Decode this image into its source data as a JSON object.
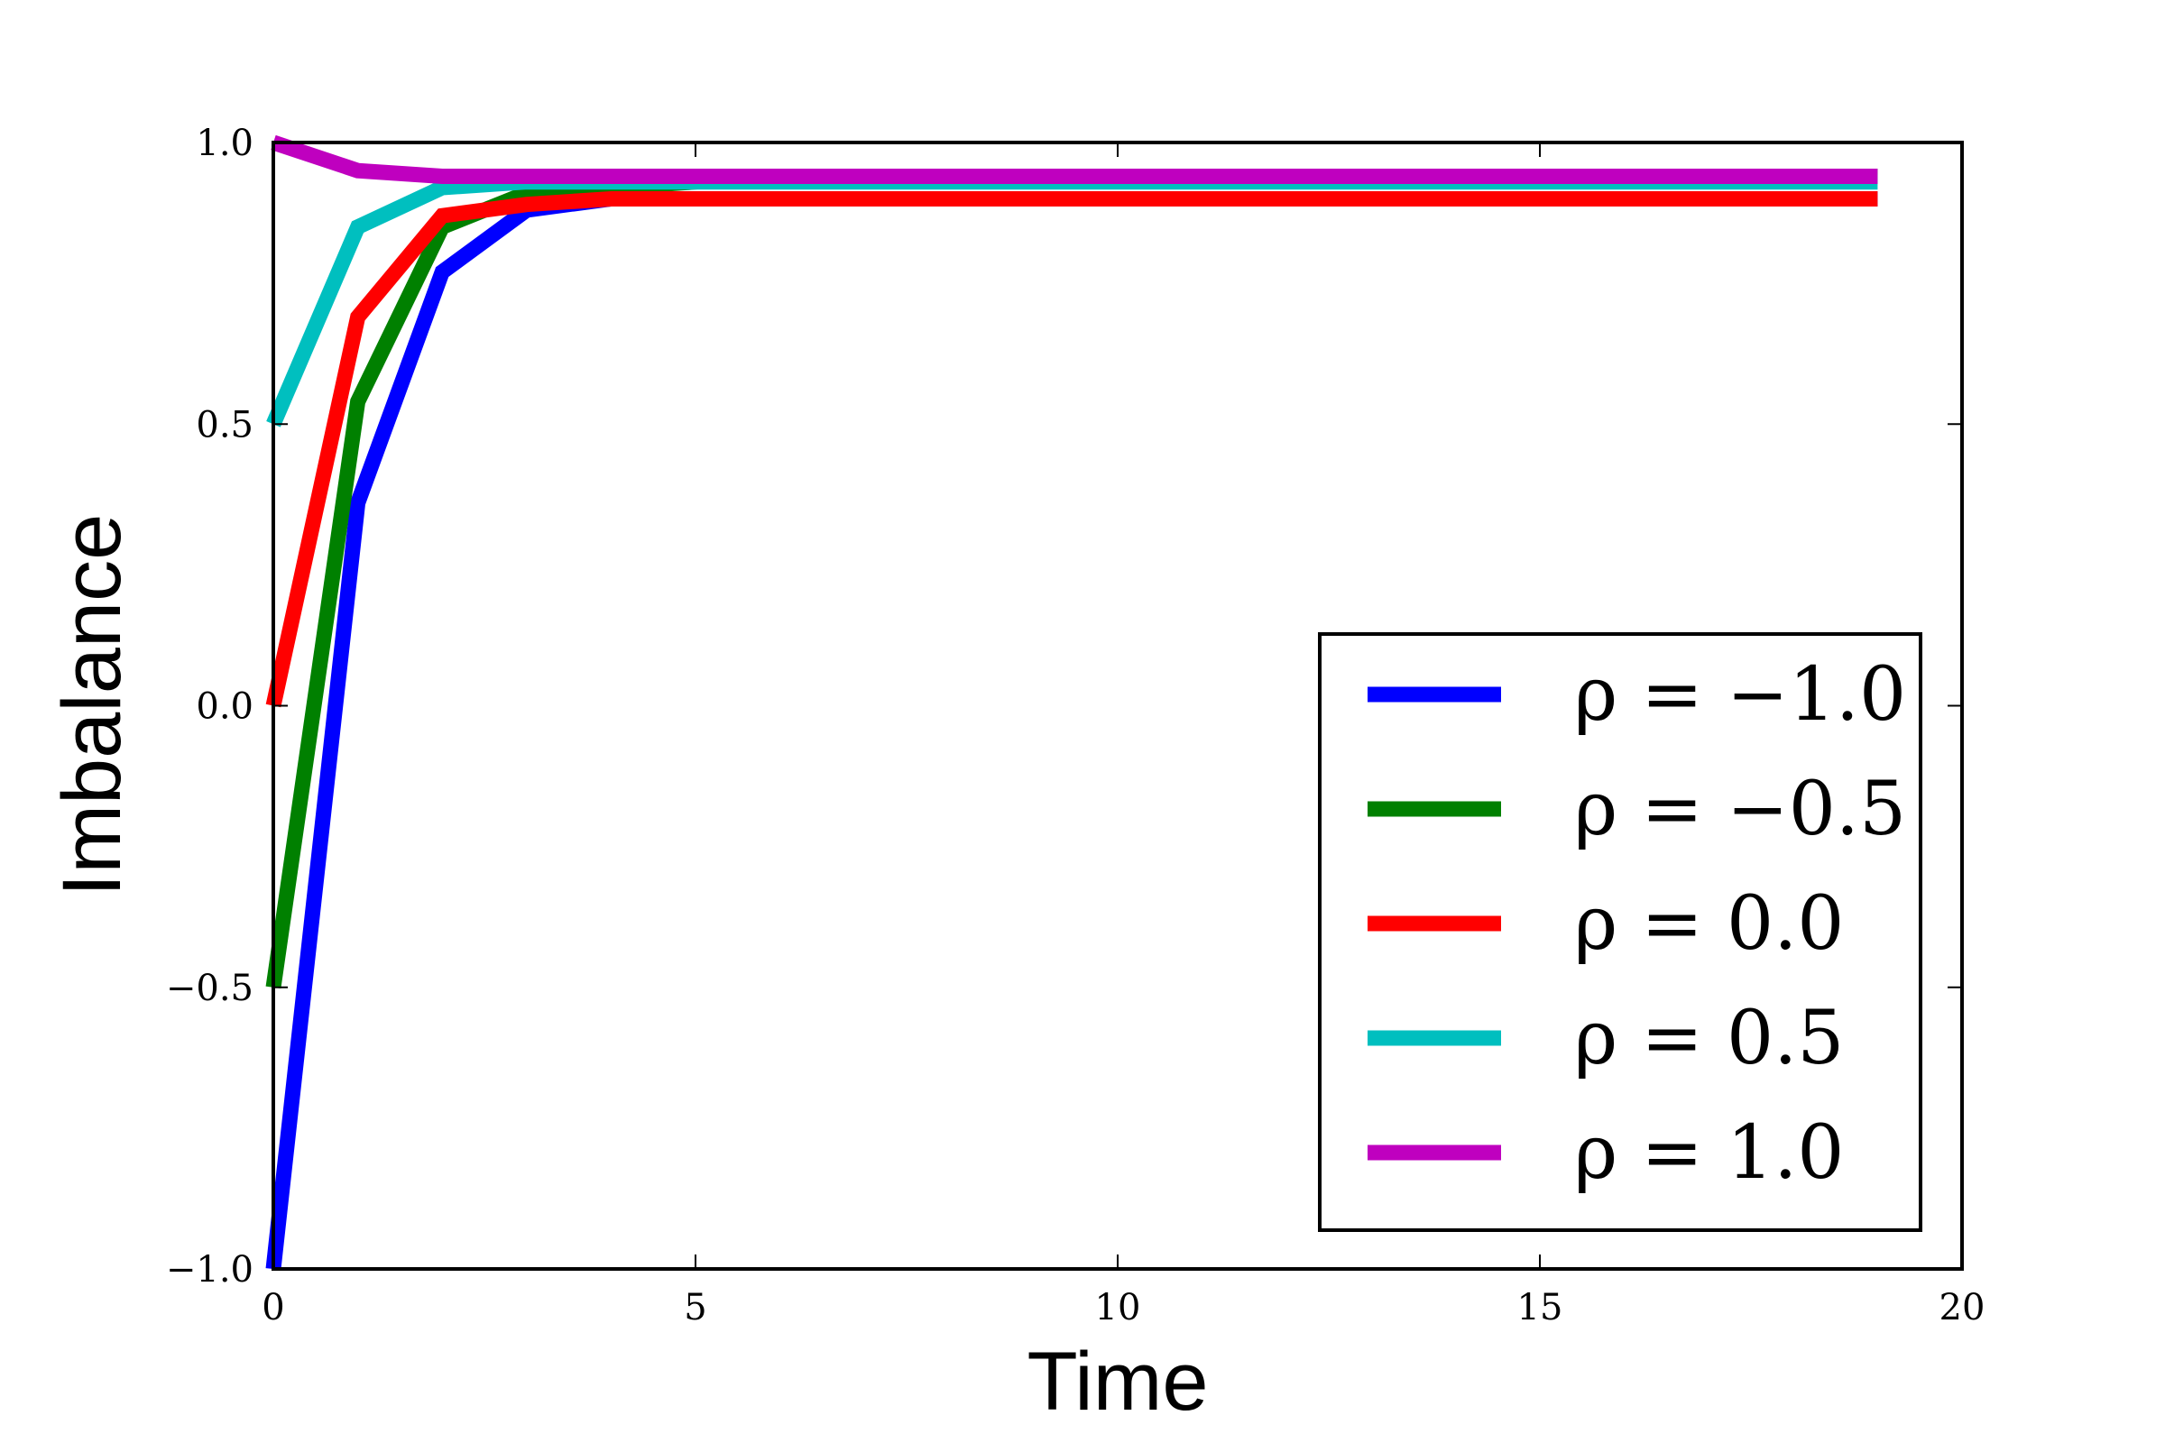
{
  "chart_data": {
    "type": "line",
    "xlabel": "Time",
    "ylabel": "Imbalance",
    "xlim": [
      0,
      20
    ],
    "ylim": [
      -1.0,
      1.0
    ],
    "x_ticks": [
      "0",
      "5",
      "10",
      "15",
      "20"
    ],
    "y_ticks": [
      "−1.0",
      "−0.5",
      "0.0",
      "0.5",
      "1.0"
    ],
    "grid": false,
    "legend_position": "lower-right",
    "x": [
      0,
      1,
      2,
      3,
      4,
      5,
      6,
      7,
      8,
      9,
      10,
      11,
      12,
      13,
      14,
      15,
      16,
      17,
      18,
      19
    ],
    "series": [
      {
        "name": "ρ = −1.0",
        "color": "#0000ff",
        "values": [
          -1.0,
          0.36,
          0.77,
          0.88,
          0.9,
          0.9,
          0.9,
          0.9,
          0.9,
          0.9,
          0.9,
          0.9,
          0.9,
          0.9,
          0.9,
          0.9,
          0.9,
          0.9,
          0.9,
          0.9
        ]
      },
      {
        "name": "ρ = −0.5",
        "color": "#008000",
        "values": [
          -0.5,
          0.54,
          0.85,
          0.91,
          0.92,
          0.93,
          0.94,
          0.94,
          0.94,
          0.94,
          0.94,
          0.94,
          0.94,
          0.94,
          0.94,
          0.94,
          0.94,
          0.94,
          0.94,
          0.94
        ]
      },
      {
        "name": "ρ = 0.0",
        "color": "#ff0000",
        "values": [
          0.0,
          0.69,
          0.87,
          0.89,
          0.9,
          0.9,
          0.9,
          0.9,
          0.9,
          0.9,
          0.9,
          0.9,
          0.9,
          0.9,
          0.9,
          0.9,
          0.9,
          0.9,
          0.9,
          0.9
        ]
      },
      {
        "name": "ρ = 0.5",
        "color": "#00bfbf",
        "values": [
          0.5,
          0.85,
          0.92,
          0.93,
          0.93,
          0.93,
          0.93,
          0.93,
          0.93,
          0.93,
          0.93,
          0.93,
          0.93,
          0.93,
          0.93,
          0.93,
          0.93,
          0.93,
          0.93,
          0.93
        ]
      },
      {
        "name": "ρ = 1.0",
        "color": "#bf00bf",
        "values": [
          1.0,
          0.95,
          0.94,
          0.94,
          0.94,
          0.94,
          0.94,
          0.94,
          0.94,
          0.94,
          0.94,
          0.94,
          0.94,
          0.94,
          0.94,
          0.94,
          0.94,
          0.94,
          0.94,
          0.94
        ]
      }
    ]
  }
}
